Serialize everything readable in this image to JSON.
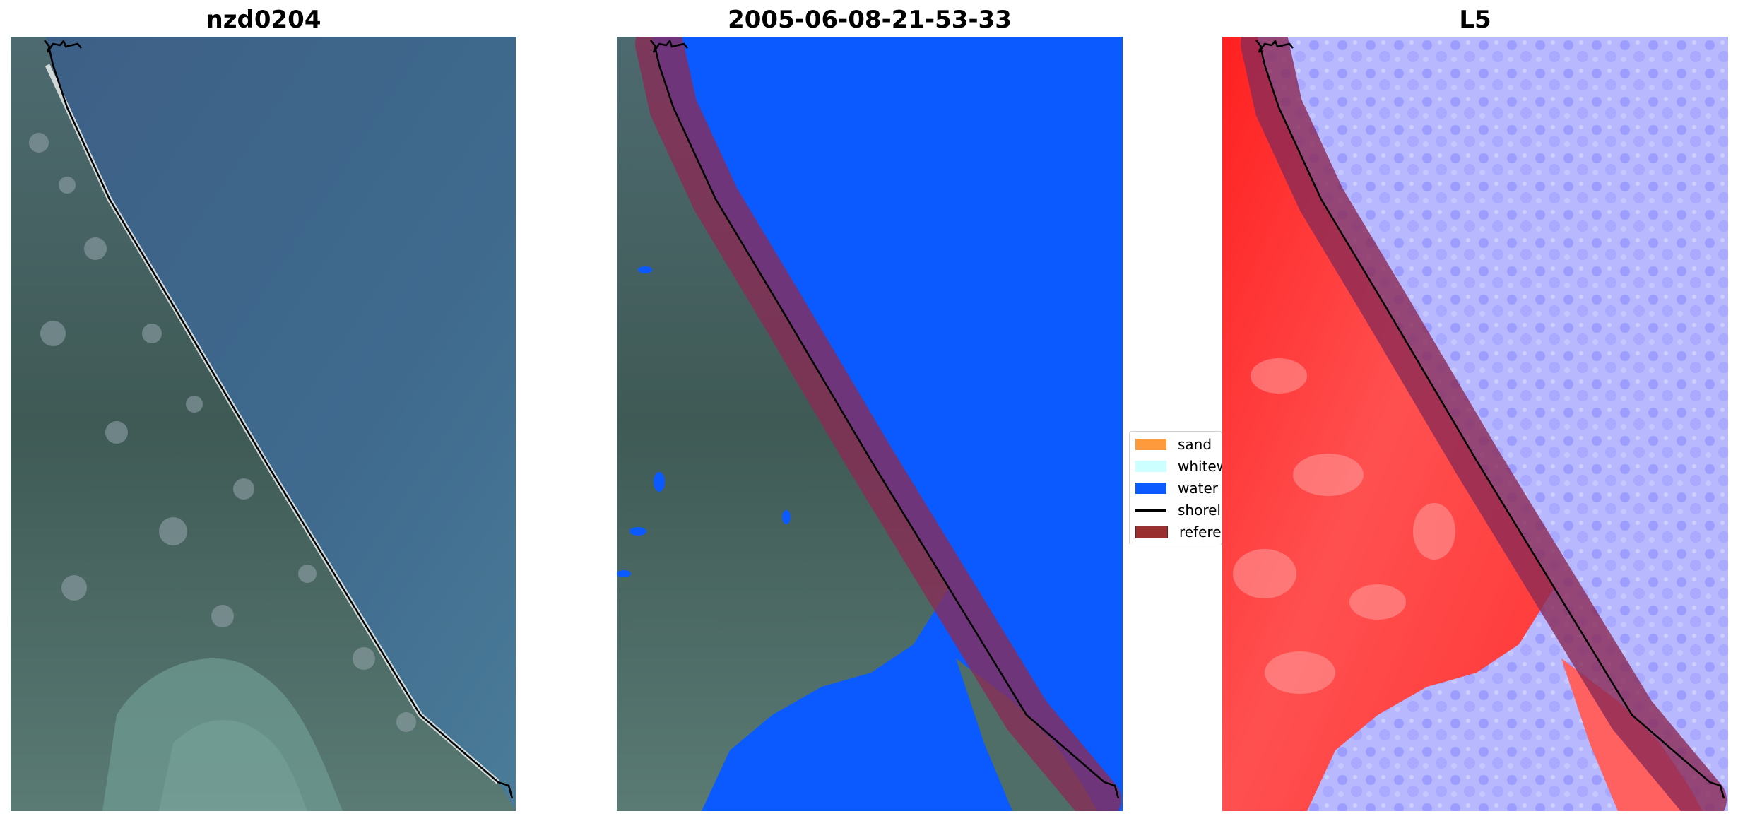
{
  "panels": [
    {
      "title": "nzd0204"
    },
    {
      "title": "2005-06-08-21-53-33"
    },
    {
      "title": "L5"
    }
  ],
  "legend": {
    "items": [
      {
        "label": "sand",
        "color": "#ff9a3c"
      },
      {
        "label": "whitew",
        "color": "#ccffff"
      },
      {
        "label": "water",
        "color": "#0a5aff"
      },
      {
        "label": "shorel",
        "color": "#000000"
      },
      {
        "label": "referen",
        "color": "#9a2f30"
      }
    ]
  },
  "colors": {
    "water_class": "#0a5aff",
    "reference_buffer": "#8b2a55",
    "shoreline": "#000000",
    "index_positive": "#ff1a1a",
    "index_negative": "#4a4aff"
  }
}
